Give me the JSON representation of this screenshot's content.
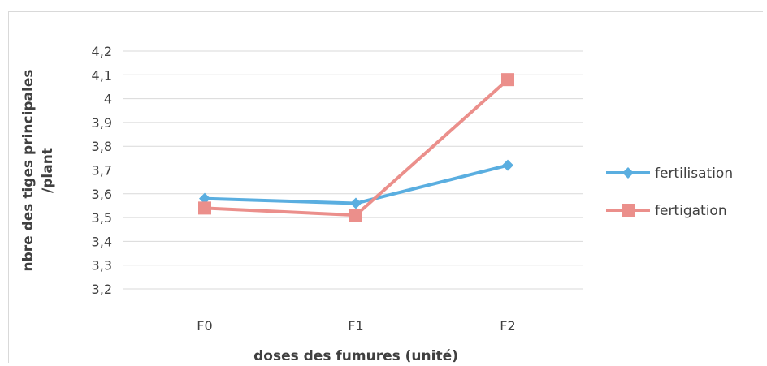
{
  "chart_data": {
    "type": "line",
    "categories": [
      "F0",
      "F1",
      "F2"
    ],
    "series": [
      {
        "name": "fertilisation",
        "values": [
          3.58,
          3.56,
          3.72
        ],
        "color": "#5aaee0",
        "marker": "diamond"
      },
      {
        "name": "fertigation",
        "values": [
          3.54,
          3.51,
          4.08
        ],
        "color": "#eb8f8b",
        "marker": "square"
      }
    ],
    "xlabel": "doses des fumures (unité)",
    "ylabel_lines": [
      "nbre des tiges principales",
      "/plant"
    ],
    "ylim": [
      3.2,
      4.2
    ],
    "yticks": [
      "3,2",
      "3,3",
      "3,4",
      "3,5",
      "3,6",
      "3,7",
      "3,8",
      "3,9",
      "4",
      "4,1",
      "4,2"
    ],
    "grid": true,
    "legend_position": "right"
  }
}
